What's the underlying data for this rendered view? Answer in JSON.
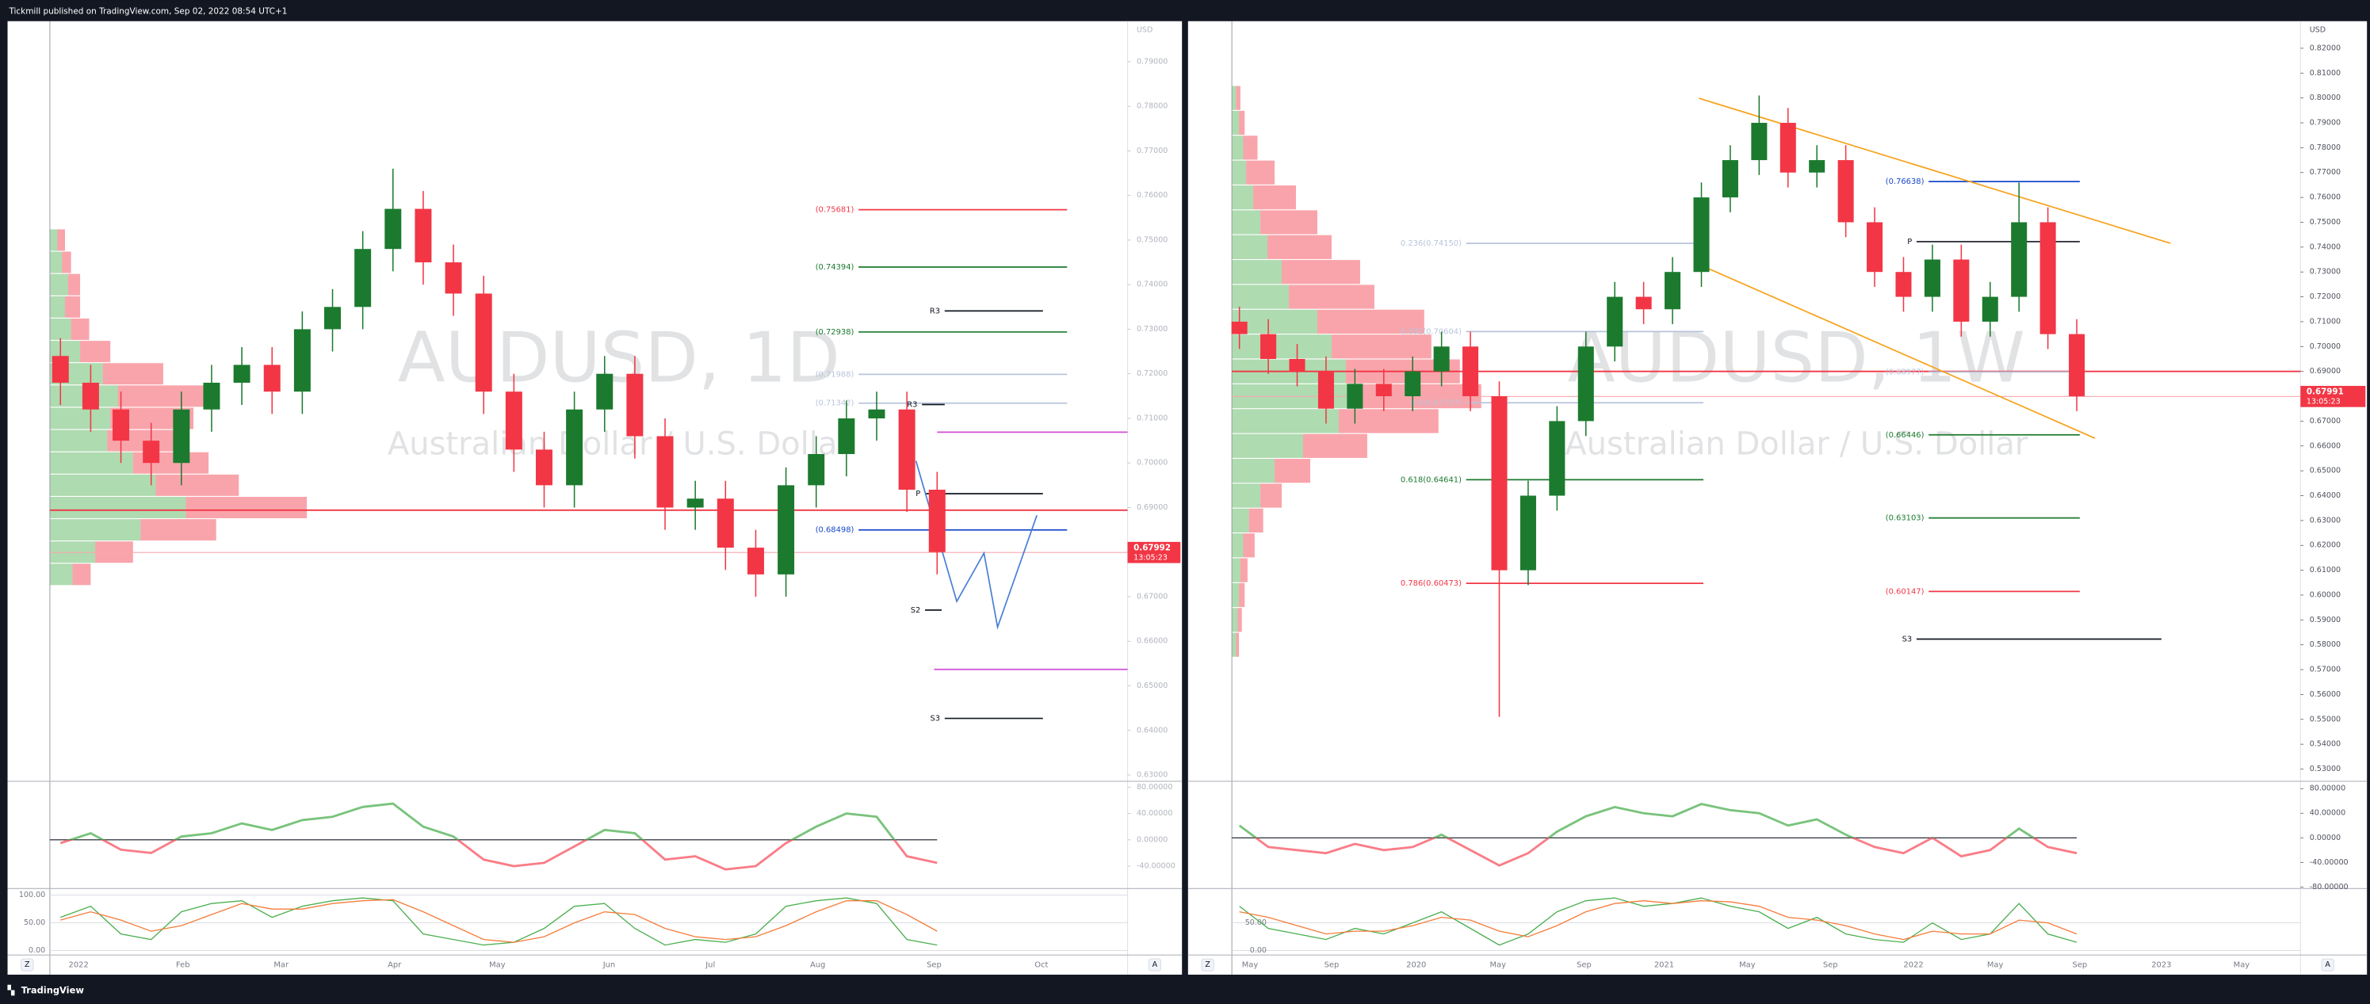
{
  "header": "Tickmill published on TradingView.com, Sep 02, 2022 08:54 UTC+1",
  "footer": "TradingView",
  "chart_data": [
    {
      "type": "candlestick",
      "title": "AUDUSD, 1D",
      "subtitle": "Australian Dollar / U.S. Dollar",
      "currency": "USD",
      "scale_buttons": [
        "Z",
        "A"
      ],
      "x_labels": [
        "2022",
        "Feb",
        "Mar",
        "Apr",
        "May",
        "Jun",
        "Jul",
        "Aug",
        "Sep",
        "Oct"
      ],
      "up_color": "#1b7a2e",
      "down_color": "#f23645",
      "open": [
        0.724,
        0.718,
        0.712,
        0.705,
        0.7,
        0.712,
        0.718,
        0.722,
        0.716,
        0.73,
        0.735,
        0.748,
        0.757,
        0.745,
        0.738,
        0.716,
        0.703,
        0.695,
        0.712,
        0.72,
        0.706,
        0.69,
        0.692,
        0.681,
        0.675,
        0.695,
        0.702,
        0.71,
        0.712,
        0.694
      ],
      "high": [
        0.728,
        0.722,
        0.716,
        0.709,
        0.716,
        0.722,
        0.726,
        0.726,
        0.734,
        0.739,
        0.752,
        0.766,
        0.761,
        0.749,
        0.742,
        0.72,
        0.707,
        0.716,
        0.724,
        0.724,
        0.71,
        0.696,
        0.696,
        0.685,
        0.699,
        0.706,
        0.714,
        0.716,
        0.716,
        0.698
      ],
      "low": [
        0.713,
        0.707,
        0.7,
        0.695,
        0.695,
        0.707,
        0.713,
        0.711,
        0.711,
        0.725,
        0.73,
        0.743,
        0.74,
        0.733,
        0.711,
        0.698,
        0.69,
        0.69,
        0.707,
        0.701,
        0.685,
        0.685,
        0.676,
        0.67,
        0.67,
        0.69,
        0.697,
        0.705,
        0.689,
        0.675
      ],
      "close": [
        0.718,
        0.712,
        0.705,
        0.7,
        0.712,
        0.718,
        0.722,
        0.716,
        0.73,
        0.735,
        0.748,
        0.757,
        0.745,
        0.738,
        0.716,
        0.703,
        0.695,
        0.712,
        0.72,
        0.706,
        0.69,
        0.692,
        0.681,
        0.675,
        0.695,
        0.702,
        0.71,
        0.712,
        0.694,
        0.68
      ],
      "ylim": [
        0.6286,
        0.7991
      ],
      "yticks": [
        {
          "value": 0.79,
          "label": "0.79000"
        },
        {
          "value": 0.78,
          "label": "0.78000"
        },
        {
          "value": 0.77,
          "label": "0.77000"
        },
        {
          "value": 0.76,
          "label": "0.76000"
        },
        {
          "value": 0.75,
          "label": "0.75000"
        },
        {
          "value": 0.74,
          "label": "0.74000"
        },
        {
          "value": 0.73,
          "label": "0.73000"
        },
        {
          "value": 0.72,
          "label": "0.72000"
        },
        {
          "value": 0.71,
          "label": "0.71000"
        },
        {
          "value": 0.7,
          "label": "0.70000"
        },
        {
          "value": 0.69,
          "label": "0.69000"
        },
        {
          "value": 0.68,
          "label": "0.68000"
        },
        {
          "value": 0.67,
          "label": "0.67000"
        },
        {
          "value": 0.66,
          "label": "0.66000"
        },
        {
          "value": 0.65,
          "label": "0.65000"
        },
        {
          "value": 0.64,
          "label": "0.64000"
        },
        {
          "value": 0.63,
          "label": "0.63000"
        }
      ],
      "levels": [
        {
          "label": "(0.75681)",
          "value": 0.75681,
          "color": "#f23645"
        },
        {
          "label": "(0.74394)",
          "value": 0.74394,
          "color": "#1b7a2e"
        },
        {
          "label": "(0.72938)",
          "value": 0.72938,
          "color": "#1b7a2e"
        },
        {
          "label": "(0.71988)",
          "value": 0.71988,
          "color": "#b8c4dc"
        },
        {
          "label": "(0.71342)",
          "value": 0.71342,
          "color": "#b8c4dc"
        },
        {
          "label": "(0.68498)",
          "value": 0.68498,
          "color": "#1848cc"
        },
        {
          "label": "R3",
          "value": 0.7341,
          "color": "#131722"
        },
        {
          "label": "R3",
          "value": 0.7131,
          "color": "#131722"
        },
        {
          "label": "P",
          "value": 0.6931,
          "color": "#131722"
        },
        {
          "label": "S2",
          "value": 0.667,
          "color": "#131722"
        },
        {
          "label": "S3",
          "value": 0.6427,
          "color": "#131722"
        }
      ],
      "hline": 0.6894,
      "hline_color": "#f23645",
      "last_price": 0.67992,
      "countdown": "13:05:23",
      "profile": {
        "prices": [
          0.75,
          0.745,
          0.74,
          0.735,
          0.73,
          0.725,
          0.72,
          0.715,
          0.71,
          0.705,
          0.7,
          0.695,
          0.69,
          0.685,
          0.68,
          0.675
        ],
        "up": [
          5,
          8,
          12,
          10,
          14,
          20,
          35,
          45,
          40,
          38,
          55,
          70,
          90,
          60,
          30,
          15
        ],
        "down": [
          5,
          6,
          8,
          10,
          12,
          20,
          40,
          60,
          55,
          45,
          50,
          55,
          80,
          50,
          25,
          12
        ]
      },
      "oscillator": {
        "values": [
          -5,
          10,
          -15,
          -20,
          5,
          10,
          25,
          15,
          30,
          35,
          50,
          55,
          20,
          5,
          -30,
          -40,
          -35,
          -10,
          15,
          10,
          -30,
          -25,
          -45,
          -40,
          -5,
          20,
          40,
          35,
          -25,
          -35
        ],
        "ylim": [
          -74,
          89
        ],
        "yticks": [
          {
            "value": 80,
            "label": "80.00000"
          },
          {
            "value": 40,
            "label": "40.00000"
          },
          {
            "value": 0,
            "label": "0.00000"
          },
          {
            "value": -40,
            "label": "-40.00000"
          }
        ]
      },
      "stochastic": {
        "series": [
          {
            "color": "#4caf50",
            "values": [
              60,
              80,
              30,
              20,
              70,
              85,
              90,
              60,
              80,
              90,
              95,
              90,
              30,
              20,
              10,
              15,
              40,
              80,
              85,
              40,
              10,
              20,
              15,
              30,
              80,
              90,
              95,
              85,
              20,
              10
            ]
          },
          {
            "color": "#f57c3a",
            "values": [
              55,
              70,
              55,
              35,
              45,
              65,
              85,
              75,
              75,
              85,
              90,
              92,
              70,
              45,
              20,
              15,
              25,
              50,
              70,
              65,
              40,
              25,
              20,
              25,
              45,
              70,
              90,
              90,
              65,
              35
            ]
          }
        ],
        "ylim": [
          -8,
          112
        ],
        "yticks": [
          {
            "value": 100,
            "label": "100.00"
          },
          {
            "value": 50,
            "label": "50.00"
          },
          {
            "value": 0,
            "label": "0.00"
          }
        ]
      }
    },
    {
      "type": "candlestick",
      "title": "AUDUSD, 1W",
      "subtitle": "Australian Dollar / U.S. Dollar",
      "currency": "USD",
      "scale_buttons": [
        "Z",
        "A"
      ],
      "x_labels": [
        "May",
        "Sep",
        "2020",
        "May",
        "Sep",
        "2021",
        "May",
        "Sep",
        "2022",
        "May",
        "Sep",
        "2023",
        "May"
      ],
      "up_color": "#1b7a2e",
      "down_color": "#f23645",
      "open": [
        0.71,
        0.705,
        0.695,
        0.69,
        0.675,
        0.685,
        0.68,
        0.69,
        0.7,
        0.68,
        0.61,
        0.64,
        0.67,
        0.7,
        0.72,
        0.715,
        0.73,
        0.76,
        0.775,
        0.79,
        0.77,
        0.775,
        0.75,
        0.73,
        0.72,
        0.735,
        0.71,
        0.72,
        0.75,
        0.705
      ],
      "high": [
        0.716,
        0.711,
        0.701,
        0.696,
        0.691,
        0.691,
        0.696,
        0.706,
        0.706,
        0.686,
        0.646,
        0.676,
        0.706,
        0.726,
        0.726,
        0.736,
        0.766,
        0.781,
        0.801,
        0.796,
        0.781,
        0.781,
        0.756,
        0.736,
        0.741,
        0.741,
        0.726,
        0.766,
        0.756,
        0.711
      ],
      "low": [
        0.699,
        0.689,
        0.684,
        0.669,
        0.669,
        0.674,
        0.674,
        0.684,
        0.674,
        0.551,
        0.604,
        0.634,
        0.664,
        0.694,
        0.709,
        0.709,
        0.724,
        0.754,
        0.769,
        0.764,
        0.764,
        0.744,
        0.724,
        0.714,
        0.714,
        0.704,
        0.704,
        0.714,
        0.699,
        0.674
      ],
      "close": [
        0.705,
        0.695,
        0.69,
        0.675,
        0.685,
        0.68,
        0.69,
        0.7,
        0.68,
        0.61,
        0.64,
        0.67,
        0.7,
        0.72,
        0.715,
        0.73,
        0.76,
        0.775,
        0.79,
        0.77,
        0.775,
        0.75,
        0.73,
        0.72,
        0.735,
        0.71,
        0.72,
        0.75,
        0.705,
        0.68
      ],
      "ylim": [
        0.5251,
        0.8309
      ],
      "yticks": [
        {
          "value": 0.82,
          "label": "0.82000"
        },
        {
          "value": 0.81,
          "label": "0.81000"
        },
        {
          "value": 0.8,
          "label": "0.80000"
        },
        {
          "value": 0.79,
          "label": "0.79000"
        },
        {
          "value": 0.78,
          "label": "0.78000"
        },
        {
          "value": 0.77,
          "label": "0.77000"
        },
        {
          "value": 0.76,
          "label": "0.76000"
        },
        {
          "value": 0.75,
          "label": "0.75000"
        },
        {
          "value": 0.74,
          "label": "0.74000"
        },
        {
          "value": 0.73,
          "label": "0.73000"
        },
        {
          "value": 0.72,
          "label": "0.72000"
        },
        {
          "value": 0.71,
          "label": "0.71000"
        },
        {
          "value": 0.7,
          "label": "0.70000"
        },
        {
          "value": 0.69,
          "label": "0.69000"
        },
        {
          "value": 0.68,
          "label": "0.68000"
        },
        {
          "value": 0.67,
          "label": "0.67000"
        },
        {
          "value": 0.66,
          "label": "0.66000"
        },
        {
          "value": 0.65,
          "label": "0.65000"
        },
        {
          "value": 0.64,
          "label": "0.64000"
        },
        {
          "value": 0.63,
          "label": "0.63000"
        },
        {
          "value": 0.62,
          "label": "0.62000"
        },
        {
          "value": 0.61,
          "label": "0.61000"
        },
        {
          "value": 0.6,
          "label": "0.60000"
        },
        {
          "value": 0.59,
          "label": "0.59000"
        },
        {
          "value": 0.58,
          "label": "0.58000"
        },
        {
          "value": 0.57,
          "label": "0.57000"
        },
        {
          "value": 0.56,
          "label": "0.56000"
        },
        {
          "value": 0.55,
          "label": "0.55000"
        },
        {
          "value": 0.54,
          "label": "0.54000"
        },
        {
          "value": 0.53,
          "label": "0.53000"
        }
      ],
      "levels": [
        {
          "label": "(0.76638)",
          "value": 0.76638,
          "color": "#1848cc"
        },
        {
          "label": "0.236(0.74150)",
          "value": 0.7415,
          "color": "#b8c4dc"
        },
        {
          "label": "0.382(0.70604)",
          "value": 0.70604,
          "color": "#b8c4dc"
        },
        {
          "label": "(0.68977)",
          "value": 0.68977,
          "color": "#b8c4dc"
        },
        {
          "label": "0.5(0.67737)",
          "value": 0.67737,
          "color": "#b8c4dc"
        },
        {
          "label": "(0.66446)",
          "value": 0.66446,
          "color": "#1b7a2e"
        },
        {
          "label": "0.618(0.64641)",
          "value": 0.64641,
          "color": "#1b7a2e"
        },
        {
          "label": "(0.63103)",
          "value": 0.63103,
          "color": "#1b7a2e"
        },
        {
          "label": "0.786(0.60473)",
          "value": 0.60473,
          "color": "#f23645"
        },
        {
          "label": "(0.60147)",
          "value": 0.60147,
          "color": "#f23645"
        },
        {
          "label": "P",
          "value": 0.7422,
          "color": "#131722"
        },
        {
          "label": "S3",
          "value": 0.5823,
          "color": "#131722"
        }
      ],
      "hline": 0.69,
      "hline_color": "#f23645",
      "last_price": 0.67991,
      "countdown": "13:05:23",
      "profile": {
        "prices": [
          0.8,
          0.79,
          0.78,
          0.77,
          0.76,
          0.75,
          0.74,
          0.73,
          0.72,
          0.71,
          0.7,
          0.69,
          0.68,
          0.67,
          0.66,
          0.65,
          0.64,
          0.63,
          0.62,
          0.61,
          0.6,
          0.59,
          0.58
        ],
        "up": [
          3,
          5,
          8,
          10,
          15,
          20,
          25,
          35,
          40,
          60,
          70,
          80,
          90,
          75,
          50,
          30,
          20,
          12,
          8,
          6,
          5,
          4,
          3
        ],
        "down": [
          3,
          4,
          10,
          20,
          30,
          40,
          45,
          55,
          60,
          75,
          70,
          80,
          85,
          70,
          45,
          25,
          15,
          10,
          8,
          5,
          4,
          3,
          2
        ]
      },
      "oscillator": {
        "values": [
          20,
          -15,
          -20,
          -25,
          -10,
          -20,
          -15,
          5,
          -20,
          -45,
          -25,
          10,
          35,
          50,
          40,
          35,
          55,
          45,
          40,
          20,
          30,
          5,
          -15,
          -25,
          0,
          -30,
          -20,
          15,
          -15,
          -25
        ],
        "ylim": [
          -82.5,
          92
        ],
        "yticks": [
          {
            "value": 80,
            "label": "80.00000"
          },
          {
            "value": 40,
            "label": "40.00000"
          },
          {
            "value": 0,
            "label": "0.00000"
          },
          {
            "value": -40,
            "label": "-40.00000"
          },
          {
            "value": -80,
            "label": "-80.00000"
          }
        ]
      },
      "stochastic": {
        "series": [
          {
            "color": "#4caf50",
            "values": [
              80,
              40,
              30,
              20,
              40,
              30,
              50,
              70,
              40,
              10,
              30,
              70,
              90,
              95,
              80,
              85,
              95,
              80,
              70,
              40,
              60,
              30,
              20,
              15,
              50,
              20,
              30,
              85,
              30,
              15
            ]
          },
          {
            "color": "#f57c3a",
            "values": [
              70,
              60,
              45,
              30,
              35,
              35,
              45,
              60,
              55,
              35,
              25,
              45,
              70,
              85,
              90,
              85,
              90,
              88,
              80,
              60,
              55,
              45,
              30,
              20,
              35,
              30,
              30,
              55,
              50,
              30
            ]
          }
        ],
        "ylim": [
          -8,
          112
        ],
        "yticks": [
          {
            "value": 50,
            "label": "50.00"
          },
          {
            "value": 0,
            "label": "0.00"
          }
        ]
      }
    }
  ]
}
